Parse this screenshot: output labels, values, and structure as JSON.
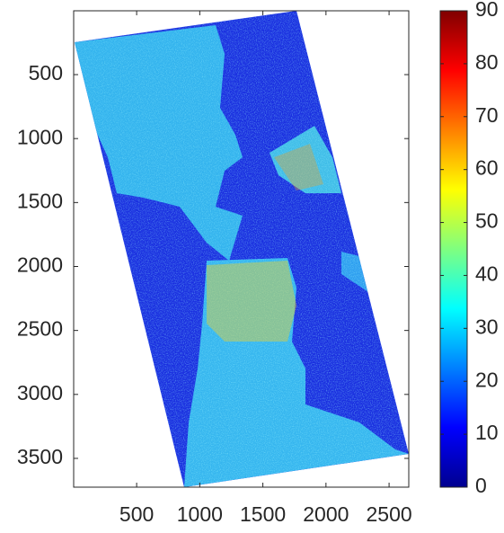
{
  "chart_data": {
    "type": "image",
    "colormap": "jet",
    "y_reversed": true,
    "xlim": [
      1,
      2656
    ],
    "ylim": [
      1,
      3725
    ],
    "xticks": [
      500,
      1000,
      1500,
      2000,
      2500
    ],
    "yticks": [
      500,
      1000,
      1500,
      2000,
      2500,
      3000,
      3500
    ],
    "colorbar": {
      "clim": [
        0,
        90
      ],
      "ticks": [
        0,
        10,
        20,
        30,
        40,
        50,
        60,
        70,
        80,
        90
      ]
    }
  }
}
